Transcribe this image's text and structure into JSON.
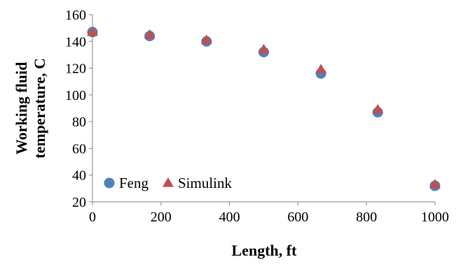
{
  "chart_data": {
    "type": "scatter",
    "title": "",
    "xlabel": "Length, ft",
    "ylabel_lines": [
      "Working fluid",
      "temperature, C"
    ],
    "xlim": [
      0,
      1000
    ],
    "ylim": [
      20,
      160
    ],
    "x_ticks": [
      0,
      200,
      400,
      600,
      800,
      1000
    ],
    "y_ticks": [
      20,
      40,
      60,
      80,
      100,
      120,
      140,
      160
    ],
    "grid": false,
    "legend_position": "bottom-left",
    "series": [
      {
        "name": "Feng",
        "marker": "circle",
        "color": "#4F81BD",
        "x": [
          0,
          167,
          333,
          500,
          667,
          833,
          1000
        ],
        "y": [
          147,
          144,
          140,
          132,
          116,
          87,
          32
        ]
      },
      {
        "name": "Simulink",
        "marker": "triangle",
        "color": "#C0504D",
        "x": [
          0,
          167,
          333,
          500,
          667,
          833,
          1000
        ],
        "y": [
          147,
          145,
          141,
          134,
          119,
          89,
          33
        ]
      }
    ]
  }
}
